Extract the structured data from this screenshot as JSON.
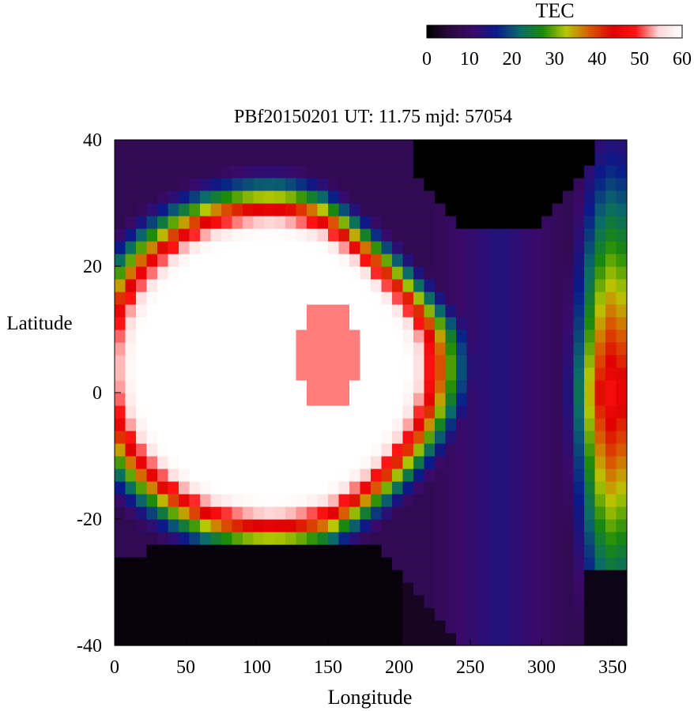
{
  "chart_data": {
    "type": "heatmap",
    "title": "PBf20150201  UT: 11.75  mjd: 57054",
    "xlabel": "Longitude",
    "ylabel": "Latitude",
    "xlim": [
      0,
      360
    ],
    "ylim": [
      -40,
      40
    ],
    "x_ticks": [
      "0",
      "50",
      "100",
      "150",
      "200",
      "250",
      "300",
      "350"
    ],
    "y_ticks": [
      "40",
      "20",
      "0",
      "-20",
      "-40"
    ],
    "colorbar": {
      "label": "TEC",
      "range": [
        0,
        60
      ],
      "ticks": [
        "0",
        "10",
        "20",
        "30",
        "40",
        "50",
        "60"
      ],
      "placement": "top-right",
      "colors": [
        "#000000",
        "#2a0a40",
        "#3a0a6a",
        "#0a1a8a",
        "#0a6a6a",
        "#1a8a0a",
        "#b8c800",
        "#d85a00",
        "#e00000",
        "#ff1414",
        "#ffd8d8",
        "#ffffff"
      ]
    },
    "grid": false,
    "features": {
      "dark_north": {
        "lon_range": [
          210,
          355
        ],
        "lat_top": 40,
        "lat_bottom_min": 25,
        "center_lon": 270
      },
      "dark_south": {
        "lon_range": [
          0,
          240
        ],
        "lat_bottom": -40,
        "lat_top_max": -24
      },
      "saturated_crest": {
        "lon_range": [
          10,
          210
        ],
        "lat_range": [
          -20,
          28
        ],
        "tec": 60
      },
      "inner_red_lobe": {
        "center": [
          150,
          6
        ],
        "tec": 52
      },
      "east_band": {
        "lon_range": [
          295,
          360
        ],
        "peak_lon": 350,
        "peak_tec": 48
      }
    }
  }
}
